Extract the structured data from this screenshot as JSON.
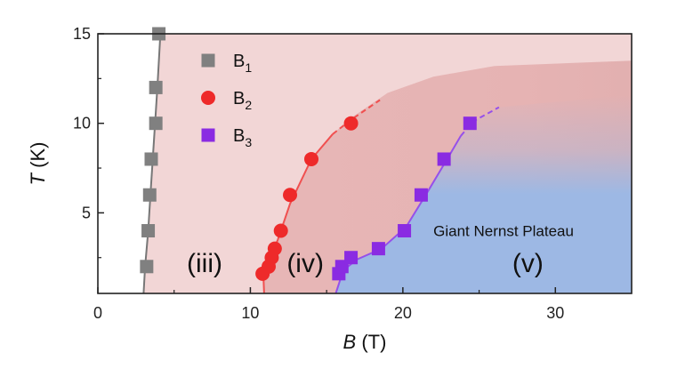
{
  "chart_data": {
    "type": "scatter",
    "xlabel_var": "B",
    "xlabel_unit": " (T)",
    "ylabel_var": "T",
    "ylabel_unit": " (K)",
    "xlim": [
      0,
      35
    ],
    "ylim": [
      0.5,
      15
    ],
    "xticks": [
      0,
      10,
      20,
      30
    ],
    "yticks": [
      5,
      10,
      15
    ],
    "legend_position": "top-left",
    "series": [
      {
        "name_base": "B",
        "name_sub": "1",
        "marker": "square",
        "color": "#808080",
        "points": [
          [
            3.2,
            2.0
          ],
          [
            3.3,
            4.0
          ],
          [
            3.4,
            6.0
          ],
          [
            3.5,
            8.0
          ],
          [
            3.8,
            10.0
          ],
          [
            3.8,
            12.0
          ],
          [
            4.0,
            15.0
          ]
        ]
      },
      {
        "name_base": "B",
        "name_sub": "2",
        "marker": "circle",
        "color": "#ee2a2a",
        "points": [
          [
            10.8,
            1.6
          ],
          [
            11.2,
            2.0
          ],
          [
            11.4,
            2.5
          ],
          [
            11.6,
            3.0
          ],
          [
            12.0,
            4.0
          ],
          [
            12.6,
            6.0
          ],
          [
            14.0,
            8.0
          ],
          [
            16.6,
            10.0
          ]
        ]
      },
      {
        "name_base": "B",
        "name_sub": "3",
        "marker": "square",
        "color": "#8a2be2",
        "points": [
          [
            15.8,
            1.6
          ],
          [
            16.0,
            2.0
          ],
          [
            16.6,
            2.5
          ],
          [
            18.4,
            3.0
          ],
          [
            20.1,
            4.0
          ],
          [
            21.2,
            6.0
          ],
          [
            22.7,
            8.0
          ],
          [
            24.4,
            10.0
          ]
        ]
      }
    ],
    "colors": {
      "phase_iii": "#f2d6d6",
      "phase_iv": "#e6b3b3",
      "phase_v": "#9db8e4",
      "curve_b1": "#777777",
      "curve_b2": "#f05050",
      "curve_b3": "#9650ea"
    },
    "region_labels": [
      {
        "text": "(iii)",
        "x": 7.0,
        "y": 1.7
      },
      {
        "text": "(iv)",
        "x": 13.6,
        "y": 1.7
      },
      {
        "text": "(v)",
        "x": 28.2,
        "y": 1.7
      }
    ],
    "annotation": {
      "text": "Giant Nernst Plateau",
      "x": 22.0,
      "y": 3.7
    }
  }
}
